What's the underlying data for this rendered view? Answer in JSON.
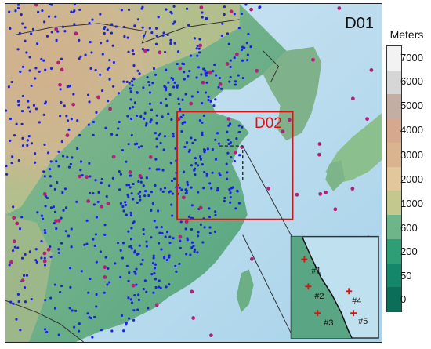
{
  "domains": {
    "outer_label": "D01",
    "inner_label": "D02",
    "inner_color": "#e01010"
  },
  "colorbar": {
    "title": "Meters",
    "ticks": [
      "7000",
      "6000",
      "5000",
      "4000",
      "3000",
      "2000",
      "1000",
      "600",
      "200",
      "50",
      "0"
    ],
    "colors": [
      "#f2f2f2",
      "#d6d6d6",
      "#c2aea2",
      "#d6a88e",
      "#d9b48f",
      "#e2c79c",
      "#c3c98e",
      "#6fb58a",
      "#2e9e77",
      "#14866a",
      "#0b6e58"
    ]
  },
  "inset_sites": [
    "#1",
    "#2",
    "#3",
    "#4",
    "#5"
  ],
  "station_colors": {
    "dense": "#1a22e0",
    "sparse": "#b3207a"
  }
}
